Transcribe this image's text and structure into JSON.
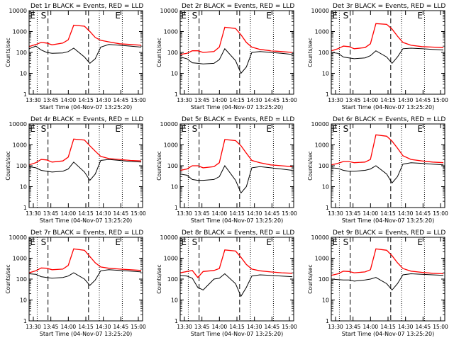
{
  "colors": {
    "background": "#ffffff",
    "axes": "#000000",
    "events": "#000000",
    "lld": "#ff0000"
  },
  "shared": {
    "ylabel": "Counts/sec",
    "xlabel": "Start Time (04-Nov-07 13:25:20)",
    "xticks": [
      "13:30",
      "13:45",
      "14:00",
      "14:15",
      "14:30",
      "14:45",
      "15:00"
    ],
    "yticks": [
      "1",
      "10",
      "100",
      "1000",
      "10000"
    ],
    "xlim_minutes": [
      13.0,
      97.0
    ],
    "ylim": [
      1,
      10000
    ],
    "yscale": "log",
    "marker_labels": [
      "E",
      "S",
      "E"
    ],
    "dotted_lines_minutes": [
      19.0,
      65.0,
      82.0
    ],
    "dashed_lines_minutes": [
      27.0,
      57.0
    ]
  },
  "chart_data": [
    {
      "type": "line",
      "title": "Det 1r BLACK = Events, RED = LLD",
      "x_minutes": [
        13,
        18,
        22,
        26,
        30,
        38,
        42,
        46,
        54,
        58,
        62,
        66,
        72,
        80,
        88,
        96
      ],
      "series": [
        {
          "name": "Events",
          "values": [
            150,
            200,
            130,
            100,
            90,
            95,
            110,
            160,
            60,
            30,
            50,
            180,
            240,
            220,
            200,
            180
          ]
        },
        {
          "name": "LLD",
          "values": [
            190,
            240,
            300,
            280,
            230,
            280,
            400,
            2000,
            1800,
            1000,
            520,
            380,
            320,
            260,
            240,
            220
          ]
        }
      ]
    },
    {
      "type": "line",
      "title": "Det 2r BLACK = Events, RED = LLD",
      "x_minutes": [
        13,
        18,
        22,
        26,
        30,
        38,
        42,
        46,
        54,
        58,
        62,
        66,
        72,
        80,
        88,
        96
      ],
      "series": [
        {
          "name": "Events",
          "values": [
            60,
            50,
            32,
            30,
            28,
            30,
            45,
            150,
            40,
            10,
            20,
            100,
            110,
            100,
            90,
            80
          ]
        },
        {
          "name": "LLD",
          "values": [
            80,
            90,
            120,
            120,
            100,
            110,
            180,
            1600,
            1400,
            700,
            300,
            180,
            140,
            120,
            110,
            100
          ]
        }
      ]
    },
    {
      "type": "line",
      "title": "Det 3r BLACK = Events, RED = LLD",
      "x_minutes": [
        13,
        18,
        22,
        26,
        30,
        38,
        42,
        46,
        54,
        58,
        62,
        66,
        72,
        80,
        88,
        96
      ],
      "series": [
        {
          "name": "Events",
          "values": [
            100,
            90,
            60,
            55,
            50,
            55,
            70,
            120,
            60,
            30,
            60,
            150,
            160,
            150,
            140,
            130
          ]
        },
        {
          "name": "LLD",
          "values": [
            120,
            150,
            200,
            190,
            150,
            170,
            260,
            2400,
            2200,
            1300,
            600,
            300,
            220,
            190,
            180,
            170
          ]
        }
      ]
    },
    {
      "type": "line",
      "title": "Det 4r BLACK = Events, RED = LLD",
      "x_minutes": [
        13,
        18,
        22,
        26,
        30,
        38,
        42,
        46,
        54,
        58,
        62,
        66,
        72,
        80,
        88,
        96
      ],
      "series": [
        {
          "name": "Events",
          "values": [
            90,
            80,
            60,
            55,
            50,
            55,
            70,
            150,
            50,
            20,
            40,
            180,
            200,
            180,
            160,
            150
          ]
        },
        {
          "name": "LLD",
          "values": [
            110,
            140,
            200,
            190,
            150,
            170,
            260,
            1900,
            1700,
            900,
            500,
            280,
            220,
            200,
            180,
            170
          ]
        }
      ]
    },
    {
      "type": "line",
      "title": "Det 5r BLACK = Events, RED = LLD",
      "x_minutes": [
        13,
        18,
        22,
        26,
        30,
        38,
        42,
        46,
        54,
        58,
        62,
        66,
        72,
        80,
        88,
        96
      ],
      "series": [
        {
          "name": "Events",
          "values": [
            40,
            35,
            22,
            20,
            20,
            22,
            30,
            100,
            20,
            5,
            10,
            80,
            90,
            80,
            70,
            60
          ]
        },
        {
          "name": "LLD",
          "values": [
            60,
            70,
            100,
            100,
            80,
            90,
            140,
            1800,
            1600,
            900,
            400,
            180,
            140,
            110,
            100,
            90
          ]
        }
      ]
    },
    {
      "type": "line",
      "title": "Det 6r BLACK = Events, RED = LLD",
      "x_minutes": [
        13,
        18,
        22,
        26,
        30,
        38,
        42,
        46,
        54,
        58,
        62,
        66,
        72,
        80,
        88,
        96
      ],
      "series": [
        {
          "name": "Events",
          "values": [
            80,
            75,
            60,
            55,
            55,
            60,
            70,
            100,
            40,
            15,
            30,
            120,
            140,
            130,
            120,
            110
          ]
        },
        {
          "name": "LLD",
          "values": [
            110,
            130,
            160,
            160,
            140,
            150,
            200,
            3000,
            2600,
            1500,
            700,
            300,
            200,
            170,
            150,
            140
          ]
        }
      ]
    },
    {
      "type": "line",
      "title": "Det 7r BLACK = Events, RED = LLD",
      "x_minutes": [
        13,
        18,
        22,
        26,
        30,
        38,
        42,
        46,
        54,
        58,
        62,
        66,
        72,
        80,
        88,
        96
      ],
      "series": [
        {
          "name": "Events",
          "values": [
            180,
            170,
            130,
            120,
            110,
            120,
            140,
            200,
            100,
            50,
            90,
            250,
            280,
            260,
            240,
            220
          ]
        },
        {
          "name": "LLD",
          "values": [
            200,
            250,
            340,
            330,
            280,
            300,
            450,
            2800,
            2400,
            1200,
            600,
            380,
            330,
            300,
            280,
            260
          ]
        }
      ]
    },
    {
      "type": "line",
      "title": "Det 8r BLACK = Events, RED = LLD",
      "x_minutes": [
        13,
        18,
        22,
        26,
        30,
        38,
        42,
        46,
        54,
        58,
        62,
        66,
        72,
        80,
        88,
        96
      ],
      "series": [
        {
          "name": "Events",
          "values": [
            150,
            140,
            110,
            40,
            30,
            100,
            110,
            180,
            60,
            15,
            40,
            140,
            160,
            150,
            140,
            130
          ]
        },
        {
          "name": "LLD",
          "values": [
            200,
            230,
            260,
            120,
            230,
            260,
            320,
            2500,
            2200,
            1100,
            500,
            300,
            250,
            220,
            200,
            190
          ]
        }
      ]
    },
    {
      "type": "line",
      "title": "Det 9r BLACK = Events, RED = LLD",
      "x_minutes": [
        13,
        18,
        22,
        26,
        30,
        38,
        42,
        46,
        54,
        58,
        62,
        66,
        72,
        80,
        88,
        96
      ],
      "series": [
        {
          "name": "Events",
          "values": [
            100,
            95,
            90,
            90,
            80,
            90,
            100,
            120,
            60,
            30,
            60,
            160,
            180,
            170,
            160,
            150
          ]
        },
        {
          "name": "LLD",
          "values": [
            150,
            180,
            240,
            230,
            200,
            220,
            280,
            2800,
            2400,
            1300,
            600,
            320,
            240,
            210,
            190,
            180
          ]
        }
      ]
    }
  ]
}
